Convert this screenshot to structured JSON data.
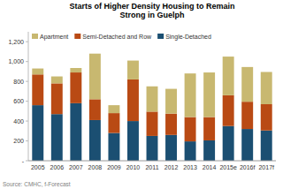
{
  "chart_data": {
    "type": "bar",
    "stacked": true,
    "title": "Starts of Higher Density Housing to Remain\nStrong in Guelph",
    "source": "Source: CMHC, f-Forecast",
    "categories": [
      "2005",
      "2006",
      "2007",
      "2008",
      "2009",
      "2010",
      "2011",
      "2012",
      "2013",
      "2014",
      "2015e",
      "2016f",
      "2017f"
    ],
    "series": [
      {
        "name": "Single-Detached",
        "color": "#1B4F72",
        "values": [
          560,
          470,
          580,
          410,
          280,
          400,
          250,
          260,
          195,
          205,
          350,
          320,
          305
        ]
      },
      {
        "name": "Semi-Detached and Row",
        "color": "#B94A14",
        "values": [
          310,
          310,
          310,
          210,
          200,
          420,
          245,
          215,
          245,
          235,
          310,
          275,
          265
        ]
      },
      {
        "name": "Apartment",
        "color": "#C8B870",
        "values": [
          60,
          70,
          45,
          460,
          80,
          190,
          255,
          250,
          440,
          450,
          390,
          350,
          325
        ]
      }
    ],
    "ylim": [
      0,
      1300
    ],
    "yticks": [
      {
        "value": 0,
        "label": "-"
      },
      200,
      400,
      600,
      800,
      {
        "value": 1000,
        "label": "1,000"
      },
      {
        "value": 1200,
        "label": "1,200"
      }
    ],
    "grid": false,
    "legend": "upper left"
  }
}
